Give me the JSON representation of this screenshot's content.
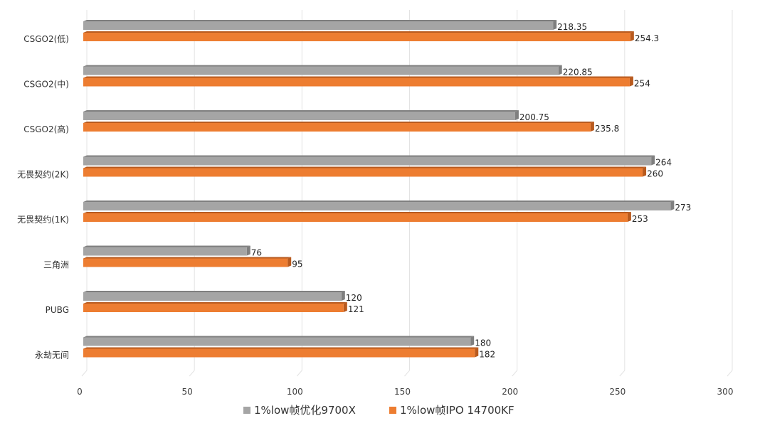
{
  "chart_data": {
    "type": "bar",
    "orientation": "horizontal",
    "categories": [
      "CSGO2(低)",
      "CSGO2(中)",
      "CSGO2(高)",
      "无畏契约(2K)",
      "无畏契约(1K)",
      "三角洲",
      "PUBG",
      "永劫无间"
    ],
    "series": [
      {
        "name": "1%low帧优化9700X",
        "color": "#a5a5a5",
        "shade": "#7f7f7f",
        "values": [
          218.35,
          220.85,
          200.75,
          264,
          273,
          76,
          120,
          180
        ],
        "labels": [
          "218.35",
          "220.85",
          "200.75",
          "264",
          "273",
          "76",
          "120",
          "180"
        ]
      },
      {
        "name": "1%low帧IPO 14700KF",
        "color": "#ed7d31",
        "shade": "#b85a1e",
        "values": [
          254.3,
          254,
          235.8,
          260,
          253,
          95,
          121,
          182
        ],
        "labels": [
          "254.3",
          "254",
          "235.8",
          "260",
          "253",
          "95",
          "121",
          "182"
        ]
      }
    ],
    "xlim": [
      0,
      300
    ],
    "ticks": [
      "0",
      "50",
      "100",
      "150",
      "200",
      "250",
      "300"
    ],
    "tick_values": [
      0,
      50,
      100,
      150,
      200,
      250,
      300
    ],
    "grid": true,
    "legend": "bottom",
    "title": "",
    "xlabel": "",
    "ylabel": ""
  }
}
